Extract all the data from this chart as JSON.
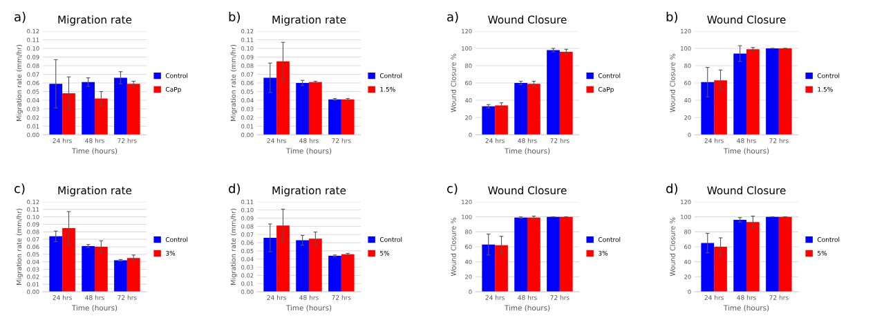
{
  "chart_data": [
    {
      "type": "bar",
      "title": "Migration rate",
      "annotations": [
        "a)"
      ],
      "xlabel": "Time (hours)",
      "ylabel": "Migration rate (mm/hr)",
      "categories": [
        "24 hrs",
        "48 hrs",
        "72 hrs"
      ],
      "ylim": [
        0,
        0.12
      ],
      "yticks": [
        {
          "value": 0,
          "label": "0.00"
        },
        {
          "value": 0.01,
          "label": "0.01"
        },
        {
          "value": 0.02,
          "label": "0.02"
        },
        {
          "value": 0.03,
          "label": "0.03"
        },
        {
          "value": 0.04,
          "label": "0.04"
        },
        {
          "value": 0.05,
          "label": "0.05"
        },
        {
          "value": 0.06,
          "label": "0.06"
        },
        {
          "value": 0.07,
          "label": "0.07"
        },
        {
          "value": 0.08,
          "label": "0.08"
        },
        {
          "value": 0.09,
          "label": "0.09"
        },
        {
          "value": 0.1,
          "label": "0.10"
        },
        {
          "value": 0.11,
          "label": "0.11"
        },
        {
          "value": 0.12,
          "label": "0.12"
        }
      ],
      "grid": "y",
      "legend": "right",
      "series": [
        {
          "name": "Control",
          "color": "#0000ff",
          "values": [
            0.059,
            0.061,
            0.066
          ],
          "errors": [
            0.028,
            0.005,
            0.007
          ]
        },
        {
          "name": "CaPp",
          "color": "#ff0000",
          "values": [
            0.048,
            0.042,
            0.059
          ],
          "errors": [
            0.019,
            0.008,
            0.003
          ]
        }
      ]
    },
    {
      "type": "bar",
      "title": "Migration rate",
      "annotations": [
        "b)"
      ],
      "xlabel": "Time (hours)",
      "ylabel": "Migration rate (mm/hr)",
      "categories": [
        "24 hrs",
        "48 hrs",
        "72 hrs"
      ],
      "ylim": [
        0,
        0.12
      ],
      "yticks": [
        {
          "value": 0,
          "label": "0.00"
        },
        {
          "value": 0.01,
          "label": "0.01"
        },
        {
          "value": 0.02,
          "label": "0.02"
        },
        {
          "value": 0.03,
          "label": "0.03"
        },
        {
          "value": 0.04,
          "label": "0.04"
        },
        {
          "value": 0.05,
          "label": "0.05"
        },
        {
          "value": 0.06,
          "label": "0.06"
        },
        {
          "value": 0.07,
          "label": "0.07"
        },
        {
          "value": 0.08,
          "label": "0.08"
        },
        {
          "value": 0.09,
          "label": "0.09"
        },
        {
          "value": 0.1,
          "label": "0.10"
        },
        {
          "value": 0.11,
          "label": "0.11"
        },
        {
          "value": 0.12,
          "label": "0.12"
        }
      ],
      "grid": "y",
      "legend": "right",
      "series": [
        {
          "name": "Control",
          "color": "#0000ff",
          "values": [
            0.066,
            0.06,
            0.041
          ],
          "errors": [
            0.017,
            0.003,
            0.001
          ]
        },
        {
          "name": "1.5%",
          "color": "#ff0000",
          "values": [
            0.085,
            0.061,
            0.041
          ],
          "errors": [
            0.022,
            0.001,
            0.001
          ]
        }
      ]
    },
    {
      "type": "bar",
      "title": "Wound Closure",
      "annotations": [
        "a)"
      ],
      "xlabel": "Time (hours)",
      "ylabel": "Wound Closure %",
      "categories": [
        "24 hrs",
        "48 hrs",
        "72 hrs"
      ],
      "ylim": [
        0,
        120
      ],
      "yticks": [
        0,
        20,
        40,
        60,
        80,
        100,
        120
      ],
      "grid": "y",
      "legend": "right",
      "series": [
        {
          "name": "Control",
          "color": "#0000ff",
          "values": [
            33,
            60,
            98
          ],
          "errors": [
            2,
            2,
            2
          ]
        },
        {
          "name": "CaPp",
          "color": "#ff0000",
          "values": [
            34,
            59,
            96
          ],
          "errors": [
            3,
            3,
            3
          ]
        }
      ]
    },
    {
      "type": "bar",
      "title": "Wound Closure",
      "annotations": [
        "b)"
      ],
      "xlabel": "Time (hours)",
      "ylabel": "Wound Closure %",
      "categories": [
        "24 hrs",
        "48 hrs",
        "72 hrs"
      ],
      "ylim": [
        0,
        120
      ],
      "yticks": [
        0,
        20,
        40,
        60,
        80,
        100,
        120
      ],
      "grid": "y",
      "legend": "right",
      "series": [
        {
          "name": "Control",
          "color": "#0000ff",
          "values": [
            61,
            94,
            100
          ],
          "errors": [
            17,
            9,
            null
          ]
        },
        {
          "name": "1.5%",
          "color": "#ff0000",
          "values": [
            63,
            99,
            100
          ],
          "errors": [
            12,
            2,
            null
          ]
        }
      ]
    },
    {
      "type": "bar",
      "title": "Migration rate",
      "annotations": [
        "c)"
      ],
      "xlabel": "Time (hours)",
      "ylabel": "Migration rate (mm/hr)",
      "categories": [
        "24 hrs",
        "48 hrs",
        "72 hrs"
      ],
      "ylim": [
        0,
        0.12
      ],
      "yticks": [
        {
          "value": 0,
          "label": "0.00"
        },
        {
          "value": 0.01,
          "label": "0.01"
        },
        {
          "value": 0.02,
          "label": "0.02"
        },
        {
          "value": 0.03,
          "label": "0.03"
        },
        {
          "value": 0.04,
          "label": "0.04"
        },
        {
          "value": 0.05,
          "label": "0.05"
        },
        {
          "value": 0.06,
          "label": "0.06"
        },
        {
          "value": 0.07,
          "label": "0.07"
        },
        {
          "value": 0.08,
          "label": "0.08"
        },
        {
          "value": 0.09,
          "label": "0.09"
        },
        {
          "value": 0.1,
          "label": "0.10"
        },
        {
          "value": 0.11,
          "label": "0.11"
        },
        {
          "value": 0.12,
          "label": "0.12"
        }
      ],
      "grid": "y",
      "legend": "right",
      "series": [
        {
          "name": "Control",
          "color": "#0000ff",
          "values": [
            0.074,
            0.061,
            0.042
          ],
          "errors": [
            0.007,
            0.002,
            0.001
          ]
        },
        {
          "name": "3%",
          "color": "#ff0000",
          "values": [
            0.085,
            0.06,
            0.045
          ],
          "errors": [
            0.022,
            0.008,
            0.004
          ]
        }
      ]
    },
    {
      "type": "bar",
      "title": "Migration rate",
      "annotations": [
        "d)"
      ],
      "xlabel": "Time (hours)",
      "ylabel": "Migration rate (mm/hr)",
      "categories": [
        "24 hrs",
        "48 hrs",
        "72 hrs"
      ],
      "ylim": [
        0,
        0.11
      ],
      "yticks": [
        {
          "value": 0,
          "label": "0.00"
        },
        {
          "value": 0.01,
          "label": "0.01"
        },
        {
          "value": 0.02,
          "label": "0.02"
        },
        {
          "value": 0.03,
          "label": "0.03"
        },
        {
          "value": 0.04,
          "label": "0.04"
        },
        {
          "value": 0.05,
          "label": "0.05"
        },
        {
          "value": 0.06,
          "label": "0.06"
        },
        {
          "value": 0.07,
          "label": "0.07"
        },
        {
          "value": 0.08,
          "label": "0.08"
        },
        {
          "value": 0.09,
          "label": "0.09"
        },
        {
          "value": 0.1,
          "label": "0.10"
        },
        {
          "value": 0.11,
          "label": "0.11"
        }
      ],
      "grid": "y",
      "legend": "right",
      "series": [
        {
          "name": "Control",
          "color": "#0000ff",
          "values": [
            0.066,
            0.063,
            0.044
          ],
          "errors": [
            0.017,
            0.006,
            0.001
          ]
        },
        {
          "name": "5%",
          "color": "#ff0000",
          "values": [
            0.081,
            0.065,
            0.046
          ],
          "errors": [
            0.02,
            0.008,
            0.001
          ]
        }
      ]
    },
    {
      "type": "bar",
      "title": "Wound Closure",
      "annotations": [
        "c)"
      ],
      "xlabel": "Time (hours)",
      "ylabel": "Wound Closure %",
      "categories": [
        "24 hrs",
        "48 hrs",
        "72 hrs"
      ],
      "ylim": [
        0,
        120
      ],
      "yticks": [
        0,
        20,
        40,
        60,
        80,
        100,
        120
      ],
      "grid": "y",
      "legend": "right",
      "series": [
        {
          "name": "Control",
          "color": "#0000ff",
          "values": [
            63,
            99,
            100
          ],
          "errors": [
            14,
            1,
            null
          ]
        },
        {
          "name": "3%",
          "color": "#ff0000",
          "values": [
            62,
            99,
            100
          ],
          "errors": [
            12,
            2,
            null
          ]
        }
      ]
    },
    {
      "type": "bar",
      "title": "Wound Closure",
      "annotations": [
        "d)"
      ],
      "xlabel": "Time (hours)",
      "ylabel": "Wound Closure %",
      "categories": [
        "24 hrs",
        "48 hrs",
        "72 hrs"
      ],
      "ylim": [
        0,
        120
      ],
      "yticks": [
        0,
        20,
        40,
        60,
        80,
        100,
        120
      ],
      "grid": "y",
      "legend": "right",
      "series": [
        {
          "name": "Control",
          "color": "#0000ff",
          "values": [
            65,
            96,
            100
          ],
          "errors": [
            13,
            3,
            null
          ]
        },
        {
          "name": "5%",
          "color": "#ff0000",
          "values": [
            60,
            93,
            100
          ],
          "errors": [
            12,
            8,
            null
          ]
        }
      ]
    }
  ]
}
